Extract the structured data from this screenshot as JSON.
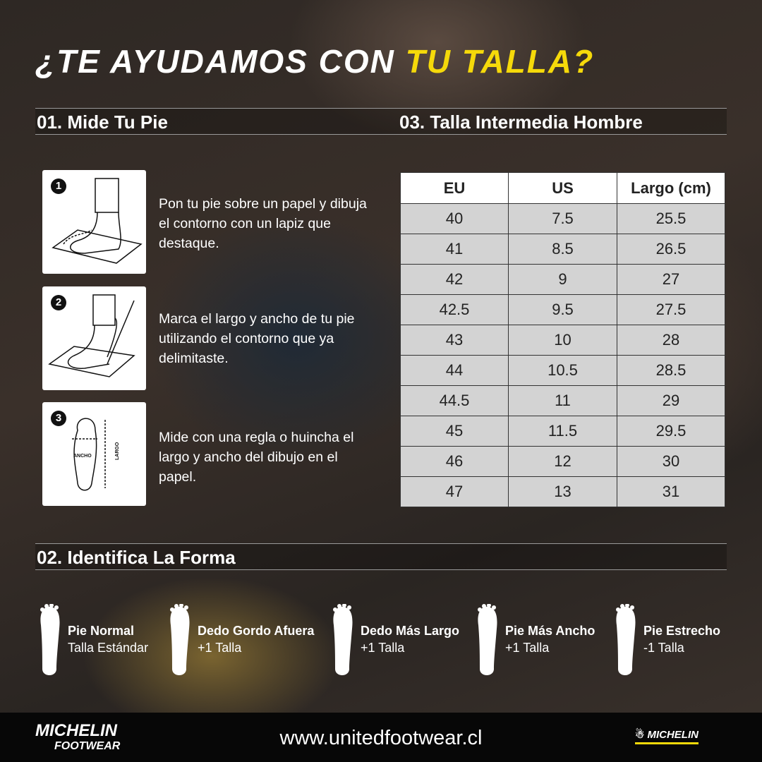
{
  "title": {
    "part1": "¿TE AYUDAMOS CON ",
    "part2": "TU TALLA?"
  },
  "colors": {
    "accent": "#f5d90a",
    "table_header": "#ffffff",
    "table_row": "#d3d3d3"
  },
  "section1": {
    "heading": "01. Mide Tu Pie",
    "steps": [
      {
        "number": "1",
        "text": "Pon tu pie sobre un papel y dibuja el contorno con un lapiz que destaque.",
        "icon": "foot-on-paper-icon"
      },
      {
        "number": "2",
        "text": "Marca el largo y ancho de tu pie utilizando el contorno que ya delimitaste.",
        "icon": "marking-foot-icon"
      },
      {
        "number": "3",
        "text": "Mide con una regla o huincha el largo y ancho del dibujo en el papel.",
        "icon": "foot-measure-icon",
        "labels": {
          "width": "ANCHO",
          "length": "LARGO"
        }
      }
    ]
  },
  "section2": {
    "heading": "02. Identifica La Forma",
    "shapes": [
      {
        "name": "Pie Normal",
        "size": "Talla Estándar"
      },
      {
        "name": "Dedo Gordo Afuera",
        "size": "+1 Talla"
      },
      {
        "name": "Dedo Más Largo",
        "size": "+1 Talla"
      },
      {
        "name": "Pie Más Ancho",
        "size": "+1 Talla"
      },
      {
        "name": "Pie Estrecho",
        "size": "-1 Talla"
      }
    ]
  },
  "section3": {
    "heading": "03. Talla Intermedia Hombre",
    "columns": [
      "EU",
      "US",
      "Largo (cm)"
    ],
    "rows": [
      [
        "40",
        "7.5",
        "25.5"
      ],
      [
        "41",
        "8.5",
        "26.5"
      ],
      [
        "42",
        "9",
        "27"
      ],
      [
        "42.5",
        "9.5",
        "27.5"
      ],
      [
        "43",
        "10",
        "28"
      ],
      [
        "44",
        "10.5",
        "28.5"
      ],
      [
        "44.5",
        "11",
        "29"
      ],
      [
        "45",
        "11.5",
        "29.5"
      ],
      [
        "46",
        "12",
        "30"
      ],
      [
        "47",
        "13",
        "31"
      ]
    ]
  },
  "footer": {
    "brand_main": "MICHELIN",
    "brand_sub": "FOOTWEAR",
    "url": "www.unitedfootwear.cl",
    "brand_right": "MICHELIN"
  }
}
